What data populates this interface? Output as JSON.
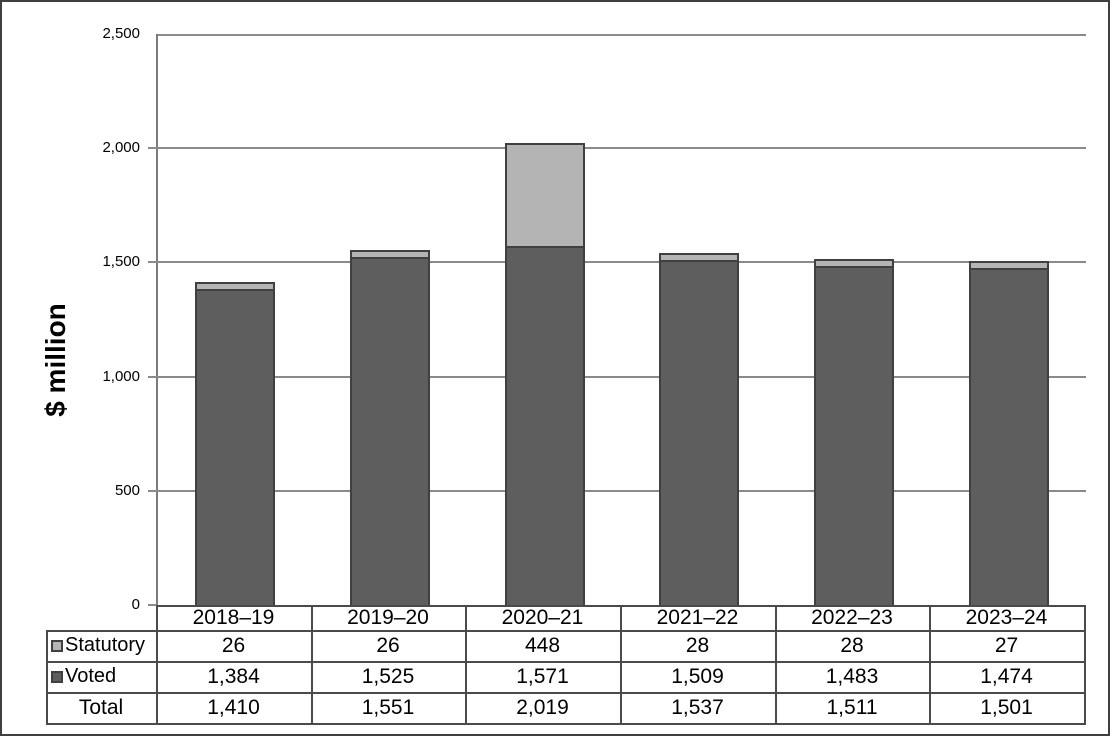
{
  "chart_data": {
    "type": "bar",
    "stacked": true,
    "categories": [
      "2018–19",
      "2019–20",
      "2020–21",
      "2021–22",
      "2022–23",
      "2023–24"
    ],
    "series": [
      {
        "name": "Statutory",
        "values": [
          26,
          26,
          448,
          28,
          28,
          27
        ],
        "color": "#b4b4b4"
      },
      {
        "name": "Voted",
        "values": [
          1384,
          1525,
          1571,
          1509,
          1483,
          1474
        ],
        "color": "#5e5e5e"
      }
    ],
    "totals": {
      "label": "Total",
      "values": [
        1410,
        1551,
        2019,
        1537,
        1511,
        1501
      ]
    },
    "title": "",
    "xlabel": "",
    "ylabel": "$ million",
    "ylim": [
      0,
      2500
    ],
    "ytick_interval": 500,
    "yticks": [
      "2,500",
      "2,000",
      "1,500",
      "1,000",
      "500",
      "0"
    ],
    "grid": true,
    "legend_position": "table-left"
  },
  "colors": {
    "statutory_fill": "#b4b4b4",
    "voted_fill": "#5e5e5e",
    "bar_border": "#404040",
    "gridline": "#8a8a8a",
    "axis_line": "#7a7a7a",
    "table_border": "#4a4a4a",
    "outer_border": "#3f3f3f"
  }
}
